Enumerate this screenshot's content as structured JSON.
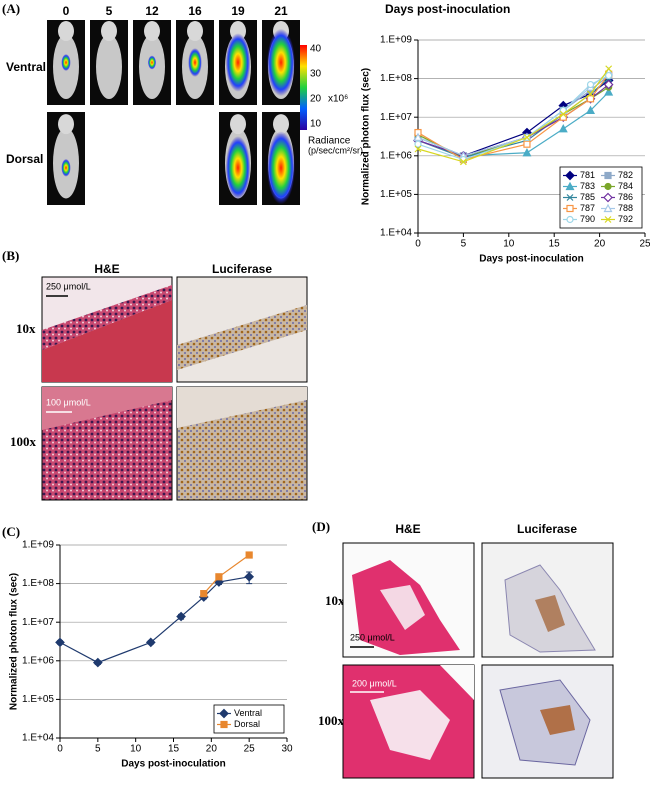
{
  "panels": {
    "a": {
      "label": "(A)",
      "days": [
        "0",
        "5",
        "12",
        "16",
        "19",
        "21"
      ],
      "rows": [
        "Ventral",
        "Dorsal"
      ],
      "colorbar": {
        "ticks": [
          "40",
          "30",
          "20",
          "10"
        ],
        "scale": "x10⁶",
        "title": [
          "Radiance",
          "(p/sec/cm²/sr)"
        ]
      }
    },
    "b": {
      "label": "(B)",
      "columns": [
        "H&E",
        "Luciferase"
      ],
      "rows": [
        "10x",
        "100x"
      ],
      "scale_bars": [
        "250 μmol/L",
        "100 μmol/L"
      ]
    },
    "c": {
      "label": "(C)"
    },
    "d": {
      "label": "(D)",
      "columns": [
        "H&E",
        "Luciferase"
      ],
      "rows": [
        "10x",
        "100x"
      ],
      "scale_bars": [
        "250 μmol/L",
        "200 μmol/L"
      ]
    }
  },
  "chart_data": [
    {
      "type": "line",
      "title": "Days post-inoculation",
      "x_label": "Days post-inoculation",
      "y_label": "Normalized photon flux (sec)",
      "ylog": true,
      "grid": true,
      "legend": "lower right",
      "xlim": [
        0,
        25
      ],
      "xticks": [
        0,
        5,
        10,
        15,
        20,
        25
      ],
      "ylim": [
        10000,
        1000000000
      ],
      "yticks": [
        {
          "value": 10000,
          "label": "1.E+04"
        },
        {
          "value": 100000,
          "label": "1.E+05"
        },
        {
          "value": 1000000,
          "label": "1.E+06"
        },
        {
          "value": 10000000,
          "label": "1.E+07"
        },
        {
          "value": 100000000,
          "label": "1.E+08"
        },
        {
          "value": 1000000000,
          "label": "1.E+09"
        }
      ],
      "x": [
        0,
        5,
        12,
        16,
        19,
        21
      ],
      "series": [
        {
          "name": "781",
          "color": "#000080",
          "marker": "diamond",
          "values": [
            2500000,
            1000000,
            4000000,
            20000000,
            40000000,
            90000000
          ]
        },
        {
          "name": "782",
          "color": "#8ea9c8",
          "marker": "square",
          "values": [
            3000000,
            1000000,
            3000000,
            15000000,
            50000000,
            120000000
          ]
        },
        {
          "name": "783",
          "color": "#4bacc6",
          "marker": "triangle",
          "values": [
            3000000,
            1000000,
            1200000,
            5000000,
            15000000,
            45000000
          ]
        },
        {
          "name": "784",
          "color": "#7aa62a",
          "marker": "circle",
          "values": [
            3500000,
            900000,
            3000000,
            12000000,
            30000000,
            60000000
          ]
        },
        {
          "name": "785",
          "color": "#31859c",
          "marker": "x",
          "values": [
            2500000,
            900000,
            2500000,
            12000000,
            40000000,
            100000000
          ]
        },
        {
          "name": "786",
          "color": "#7030a0",
          "marker": "diamond-open",
          "values": [
            2500000,
            1000000,
            3000000,
            10000000,
            30000000,
            70000000
          ]
        },
        {
          "name": "787",
          "color": "#f79646",
          "marker": "square-open",
          "values": [
            4000000,
            800000,
            2000000,
            10000000,
            30000000,
            130000000
          ]
        },
        {
          "name": "788",
          "color": "#a6c8e8",
          "marker": "triangle-open",
          "values": [
            3000000,
            1000000,
            3000000,
            15000000,
            60000000,
            150000000
          ]
        },
        {
          "name": "790",
          "color": "#9dd6e8",
          "marker": "circle-open",
          "values": [
            2000000,
            800000,
            3000000,
            15000000,
            70000000,
            120000000
          ]
        },
        {
          "name": "792",
          "color": "#d8d820",
          "marker": "x",
          "values": [
            1500000,
            700000,
            3000000,
            12000000,
            40000000,
            180000000
          ]
        }
      ]
    },
    {
      "type": "line",
      "x_label": "Days post-inoculation",
      "y_label": "Normalized photon flux (sec)",
      "ylog": true,
      "grid": true,
      "legend": "lower right",
      "xlim": [
        0,
        30
      ],
      "xticks": [
        0,
        5,
        10,
        15,
        20,
        25,
        30
      ],
      "ylim": [
        10000,
        1000000000
      ],
      "yticks": [
        {
          "value": 10000,
          "label": "1.E+04"
        },
        {
          "value": 100000,
          "label": "1.E+05"
        },
        {
          "value": 1000000,
          "label": "1.E+06"
        },
        {
          "value": 10000000,
          "label": "1.E+07"
        },
        {
          "value": 100000000,
          "label": "1.E+08"
        },
        {
          "value": 1000000000,
          "label": "1.E+09"
        }
      ],
      "series": [
        {
          "name": "Ventral",
          "color": "#1f3a6e",
          "marker": "diamond",
          "x": [
            0,
            5,
            12,
            16,
            19,
            21,
            25
          ],
          "values": [
            3000000,
            900000,
            3000000,
            14000000,
            45000000,
            110000000,
            150000000
          ],
          "errors": [
            300000,
            100000,
            300000,
            2000000,
            5000000,
            15000000,
            50000000
          ]
        },
        {
          "name": "Dorsal",
          "color": "#e8872e",
          "marker": "square",
          "x": [
            19,
            21,
            25
          ],
          "values": [
            55000000,
            150000000,
            550000000
          ]
        }
      ]
    }
  ]
}
